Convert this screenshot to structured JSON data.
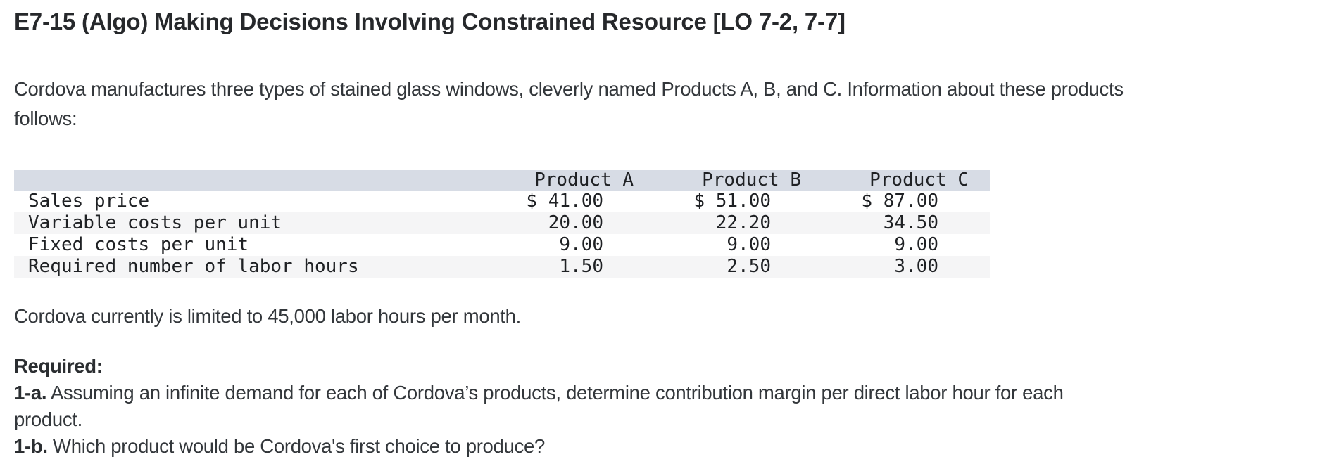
{
  "title": "E7-15 (Algo) Making Decisions Involving Constrained Resource [LO 7-2, 7-7]",
  "intro": {
    "lines": [
      "Cordova manufactures three types of stained glass windows, cleverly named Products A, B, and C. Information about these products",
      "follows:"
    ]
  },
  "table": {
    "columns": [
      "",
      "Product A",
      "Product B",
      "Product C"
    ],
    "rows": [
      {
        "label": "Sales price",
        "values": [
          "$ 41.00",
          "$ 51.00",
          "$ 87.00"
        ]
      },
      {
        "label": "Variable costs per unit",
        "values": [
          "20.00",
          "22.20",
          "34.50"
        ]
      },
      {
        "label": "Fixed costs per unit",
        "values": [
          "9.00",
          "9.00",
          "9.00"
        ]
      },
      {
        "label": "Required number of labor hours",
        "values": [
          "1.50",
          "2.50",
          "3.00"
        ]
      }
    ],
    "colors": {
      "header_bg": "#d7dce5",
      "stripe_bg": "#f5f5f6"
    }
  },
  "constraint": "Cordova currently is limited to 45,000 labor hours per month.",
  "required": {
    "heading": "Required:",
    "items": [
      {
        "label": "1-a.",
        "lines": [
          "Assuming an infinite demand for each of Cordova’s products, determine contribution margin per direct labor hour for each",
          "product."
        ]
      },
      {
        "label": "1-b.",
        "lines": [
          "Which product would be Cordova's first choice to produce?"
        ]
      }
    ]
  }
}
